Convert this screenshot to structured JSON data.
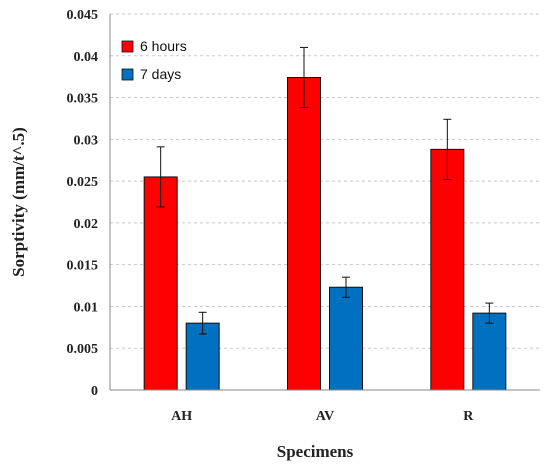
{
  "chart_data": {
    "type": "bar",
    "title": "",
    "xlabel": "Specimens",
    "ylabel": "Sorptivity (mm/t^.5)",
    "categories": [
      "AH",
      "AV",
      "R"
    ],
    "series": [
      {
        "name": "6 hours",
        "color": "#ff0000",
        "values": [
          0.0255,
          0.0374,
          0.0288
        ],
        "errors": [
          0.0036,
          0.0036,
          0.0036
        ]
      },
      {
        "name": "7 days",
        "color": "#0070c0",
        "values": [
          0.008,
          0.0123,
          0.0092
        ],
        "errors": [
          0.0013,
          0.0012,
          0.0012
        ]
      }
    ],
    "ylim": [
      0,
      0.045
    ],
    "yticks": [
      "0",
      "0.005",
      "0.01",
      "0.015",
      "0.02",
      "0.025",
      "0.03",
      "0.035",
      "0.04",
      "0.045"
    ],
    "grid": true,
    "legend_position": "top-left"
  }
}
